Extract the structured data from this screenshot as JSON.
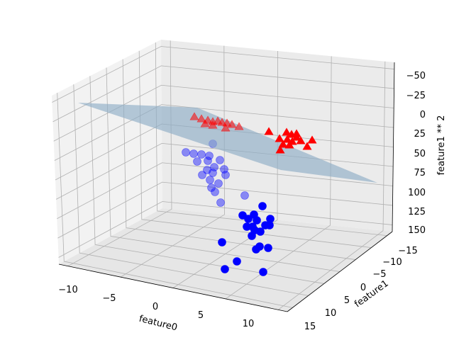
{
  "chart_data": {
    "type": "scatter3d",
    "title": "",
    "xlabel": "feature0",
    "ylabel": "feature1",
    "zlabel": "feature1 ** 2",
    "x_ticks": [
      "−10",
      "−5",
      "0",
      "5",
      "10"
    ],
    "y_ticks": [
      "−15",
      "−10",
      "−5",
      "0",
      "5",
      "10",
      "15"
    ],
    "z_ticks": [
      "−50",
      "−25",
      "0",
      "25",
      "50",
      "75",
      "100",
      "125",
      "150"
    ],
    "z_axis_inverted": true,
    "grid": true,
    "colors": {
      "class0": "#0000ff",
      "class1": "#ff0000",
      "plane": "#8fadc6"
    },
    "series": [
      {
        "class": 0,
        "marker": "circle",
        "color": "#0000ff",
        "points": [
          [
            300,
            203
          ],
          [
            262,
            215
          ],
          [
            273,
            217
          ],
          [
            284,
            218
          ],
          [
            295,
            220
          ],
          [
            278,
            228
          ],
          [
            293,
            227
          ],
          [
            310,
            226
          ],
          [
            302,
            236
          ],
          [
            292,
            240
          ],
          [
            285,
            247
          ],
          [
            300,
            244
          ],
          [
            316,
            239
          ],
          [
            318,
            247
          ],
          [
            296,
            254
          ],
          [
            308,
            259
          ],
          [
            298,
            265
          ],
          [
            303,
            271
          ],
          [
            311,
            286
          ],
          [
            345,
            276
          ],
          [
            370,
            291
          ],
          [
            358,
            303
          ],
          [
            350,
            309
          ],
          [
            342,
            304
          ],
          [
            362,
            311
          ],
          [
            374,
            318
          ],
          [
            381,
            309
          ],
          [
            356,
            320
          ],
          [
            348,
            320
          ],
          [
            367,
            327
          ],
          [
            380,
            318
          ],
          [
            355,
            333
          ],
          [
            313,
            342
          ],
          [
            361,
            352
          ],
          [
            366,
            348
          ],
          [
            378,
            350
          ],
          [
            334,
            369
          ],
          [
            317,
            380
          ],
          [
            371,
            384
          ],
          [
            359,
            325
          ]
        ]
      },
      {
        "class": 1,
        "marker": "triangle",
        "color": "#ff0000",
        "points": [
          [
            274,
            165
          ],
          [
            284,
            168
          ],
          [
            293,
            170
          ],
          [
            300,
            172
          ],
          [
            307,
            171
          ],
          [
            313,
            173
          ],
          [
            320,
            174
          ],
          [
            300,
            177
          ],
          [
            327,
            176
          ],
          [
            337,
            179
          ],
          [
            318,
            181
          ],
          [
            289,
            175
          ],
          [
            379,
            186
          ],
          [
            404,
            187
          ],
          [
            411,
            190
          ],
          [
            418,
            189
          ],
          [
            394,
            196
          ],
          [
            405,
            197
          ],
          [
            424,
            199
          ],
          [
            440,
            198
          ],
          [
            412,
            200
          ],
          [
            399,
            204
          ],
          [
            433,
            207
          ],
          [
            395,
            212
          ],
          [
            418,
            194
          ],
          [
            408,
            205
          ]
        ]
      }
    ]
  }
}
